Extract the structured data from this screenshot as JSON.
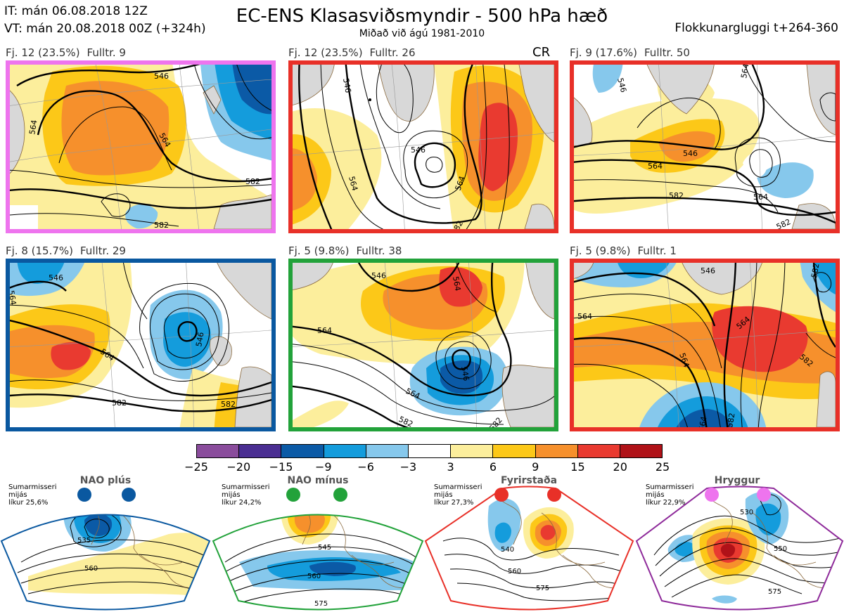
{
  "header": {
    "it": "IT: mán 06.08.2018 12Z",
    "vt": "VT: mán 20.08.2018 00Z  (+324h)",
    "title": "EC-ENS Klasasviðsmyndir - 500 hPa hæð",
    "subtitle": "Miðað við ágú 1981-2010",
    "window": "Flokkunargluggi t+264-360"
  },
  "colors": {
    "pink": "#ee74ee",
    "red": "#e83028",
    "blue": "#0a58a0",
    "green": "#22a23a",
    "purple": "#8e2a9a",
    "land": "#d8d8d8",
    "coast": "#8b6a3e"
  },
  "palette": [
    "#8a4c9c",
    "#4a2e92",
    "#0b5aa6",
    "#149cdc",
    "#86c8ec",
    "#ffffff",
    "#fcee9c",
    "#fcc818",
    "#f6902c",
    "#e93a30",
    "#b01218"
  ],
  "colorbar": {
    "ticks": [
      "−25",
      "−20",
      "−15",
      "−9",
      "−6",
      "−3",
      "3",
      "6",
      "9",
      "15",
      "20",
      "25"
    ]
  },
  "panels": [
    {
      "fj": "Fj. 12 (23.5%)",
      "fulltr": "Fulltr. 9",
      "border": "pink",
      "tag": "",
      "contours": [
        "564",
        "546",
        "564",
        "582",
        "582"
      ]
    },
    {
      "fj": "Fj. 12 (23.5%)",
      "fulltr": "Fulltr. 26",
      "border": "red",
      "tag": "CR",
      "contours": [
        "546",
        "564",
        "546",
        "564",
        "582"
      ]
    },
    {
      "fj": "Fj. 9 (17.6%)",
      "fulltr": "Fulltr. 50",
      "border": "red",
      "tag": "",
      "contours": [
        "546",
        "564",
        "546",
        "564",
        "582",
        "564",
        "582"
      ]
    },
    {
      "fj": "Fj. 8 (15.7%)",
      "fulltr": "Fulltr. 29",
      "border": "blue",
      "tag": "",
      "contours": [
        "546",
        "564",
        "546",
        "564",
        "582",
        "582"
      ]
    },
    {
      "fj": "Fj. 5 (9.8%)",
      "fulltr": "Fulltr. 38",
      "border": "green",
      "tag": "",
      "contours": [
        "546",
        "564",
        "546",
        "564",
        "582",
        "582",
        "564"
      ]
    },
    {
      "fj": "Fj. 5 (9.8%)",
      "fulltr": "Fulltr. 1",
      "border": "red",
      "tag": "",
      "contours": [
        "546",
        "564",
        "564",
        "564",
        "582",
        "582",
        "564",
        "582"
      ]
    }
  ],
  "regimes": [
    {
      "name": "NAO plús",
      "season": "Sumarmisseri",
      "avg": "mijás",
      "prob": "líkur 25,6%",
      "color": "blue",
      "contours": [
        "535",
        "560"
      ]
    },
    {
      "name": "NAO mínus",
      "season": "Sumarmisseri",
      "avg": "mijás",
      "prob": "líkur 24,2%",
      "color": "green",
      "contours": [
        "545",
        "560",
        "575"
      ]
    },
    {
      "name": "Fyrirstaða",
      "season": "Sumarmisseri",
      "avg": "mijás",
      "prob": "líkur 27,3%",
      "color": "red",
      "contours": [
        "540",
        "560",
        "575"
      ]
    },
    {
      "name": "Hryggur",
      "season": "Sumarmisseri",
      "avg": "mijás",
      "prob": "líkur 22,9%",
      "color": "purple",
      "contours": [
        "530",
        "550",
        "575"
      ]
    }
  ]
}
